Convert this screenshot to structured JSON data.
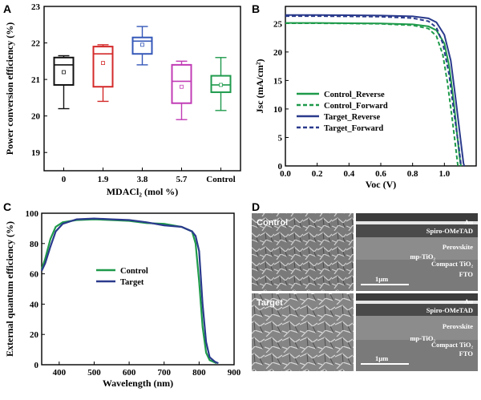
{
  "panels": {
    "a": "A",
    "b": "B",
    "c": "C",
    "d": "D"
  },
  "colors": {
    "black": "#111111",
    "red": "#d42a2a",
    "blue": "#3558b8",
    "purple": "#c13cb5",
    "green": "#1f9a4c",
    "navy": "#2a3a8c",
    "control_green": "#1e9a4a"
  },
  "chart_data": [
    {
      "type": "box",
      "ylabel": "Power conversion efficiency (%)",
      "xlabel": "MDACl₂ (mol %)",
      "ylim": [
        18.5,
        23
      ],
      "yticks": [
        "19",
        "20",
        "21",
        "22",
        "23"
      ],
      "categories": [
        "0",
        "1.9",
        "3.8",
        "5.7",
        "Control"
      ],
      "boxes": [
        {
          "cat": "0",
          "color": "black",
          "min": 20.2,
          "q1": 20.85,
          "median": 21.4,
          "q3": 21.6,
          "max": 21.65,
          "mean": 21.2
        },
        {
          "cat": "1.9",
          "color": "red",
          "min": 20.4,
          "q1": 20.8,
          "median": 21.7,
          "q3": 21.9,
          "max": 21.95,
          "mean": 21.45
        },
        {
          "cat": "3.8",
          "color": "blue",
          "min": 21.4,
          "q1": 21.7,
          "median": 22.05,
          "q3": 22.15,
          "max": 22.45,
          "mean": 21.95
        },
        {
          "cat": "5.7",
          "color": "purple",
          "min": 19.9,
          "q1": 20.35,
          "median": 20.95,
          "q3": 21.4,
          "max": 21.5,
          "mean": 20.8
        },
        {
          "cat": "Control",
          "color": "green",
          "min": 20.15,
          "q1": 20.65,
          "median": 20.85,
          "q3": 21.1,
          "max": 21.6,
          "mean": 20.85
        }
      ]
    },
    {
      "type": "line",
      "xlabel": "Voc (V)",
      "ylabel": "Jsc (mA/cm²)",
      "xlim": [
        0,
        1.2
      ],
      "ylim": [
        0,
        28
      ],
      "xticks": [
        "0.0",
        "0.2",
        "0.4",
        "0.6",
        "0.8",
        "1.0"
      ],
      "yticks": [
        "0",
        "5",
        "10",
        "15",
        "20",
        "25"
      ],
      "series": [
        {
          "name": "Control_Reverse",
          "color": "control_green",
          "dash": false,
          "points": [
            [
              0,
              25.1
            ],
            [
              0.2,
              25.1
            ],
            [
              0.4,
              25.05
            ],
            [
              0.6,
              25.0
            ],
            [
              0.8,
              24.85
            ],
            [
              0.9,
              24.5
            ],
            [
              0.95,
              23.8
            ],
            [
              1.0,
              21.5
            ],
            [
              1.03,
              17.5
            ],
            [
              1.06,
              11.0
            ],
            [
              1.08,
              5.5
            ],
            [
              1.1,
              0.5
            ],
            [
              1.105,
              0
            ]
          ]
        },
        {
          "name": "Control_Forward",
          "color": "control_green",
          "dash": true,
          "points": [
            [
              0,
              25.05
            ],
            [
              0.2,
              25.05
            ],
            [
              0.4,
              25.0
            ],
            [
              0.6,
              24.95
            ],
            [
              0.8,
              24.7
            ],
            [
              0.9,
              24.1
            ],
            [
              0.95,
              22.8
            ],
            [
              0.99,
              19.5
            ],
            [
              1.02,
              14.5
            ],
            [
              1.05,
              8.0
            ],
            [
              1.07,
              3.5
            ],
            [
              1.085,
              0
            ]
          ]
        },
        {
          "name": "Target_Reverse",
          "color": "navy",
          "dash": false,
          "points": [
            [
              0,
              26.5
            ],
            [
              0.2,
              26.5
            ],
            [
              0.4,
              26.45
            ],
            [
              0.6,
              26.4
            ],
            [
              0.8,
              26.25
            ],
            [
              0.9,
              25.9
            ],
            [
              0.95,
              25.2
            ],
            [
              1.0,
              23.0
            ],
            [
              1.04,
              18.5
            ],
            [
              1.07,
              12.0
            ],
            [
              1.1,
              5.0
            ],
            [
              1.12,
              0.5
            ],
            [
              1.125,
              0
            ]
          ]
        },
        {
          "name": "Target_Forward",
          "color": "navy",
          "dash": true,
          "points": [
            [
              0,
              26.3
            ],
            [
              0.2,
              26.3
            ],
            [
              0.4,
              26.25
            ],
            [
              0.6,
              26.2
            ],
            [
              0.8,
              25.95
            ],
            [
              0.9,
              25.4
            ],
            [
              0.95,
              24.3
            ],
            [
              0.99,
              21.5
            ],
            [
              1.03,
              16.0
            ],
            [
              1.06,
              9.5
            ],
            [
              1.09,
              3.5
            ],
            [
              1.105,
              0
            ]
          ]
        }
      ]
    },
    {
      "type": "line",
      "xlabel": "Wavelength (nm)",
      "ylabel": "External quantum efficiency (%)",
      "xlim": [
        350,
        900
      ],
      "ylim": [
        0,
        100
      ],
      "xticks": [
        "400",
        "500",
        "600",
        "700",
        "800",
        "900"
      ],
      "yticks": [
        "0",
        "20",
        "40",
        "60",
        "80",
        "100"
      ],
      "series": [
        {
          "name": "Control",
          "color": "control_green",
          "points": [
            [
              350,
              63
            ],
            [
              360,
              70
            ],
            [
              375,
              83
            ],
            [
              390,
              91
            ],
            [
              410,
              94
            ],
            [
              450,
              95.5
            ],
            [
              500,
              96
            ],
            [
              550,
              95.5
            ],
            [
              600,
              95
            ],
            [
              650,
              93.5
            ],
            [
              700,
              93
            ],
            [
              750,
              91
            ],
            [
              780,
              88
            ],
            [
              790,
              80
            ],
            [
              800,
              55
            ],
            [
              810,
              25
            ],
            [
              820,
              8
            ],
            [
              830,
              3
            ],
            [
              850,
              1
            ]
          ]
        },
        {
          "name": "Target",
          "color": "navy",
          "points": [
            [
              350,
              62
            ],
            [
              360,
              67
            ],
            [
              375,
              78
            ],
            [
              390,
              88
            ],
            [
              410,
              93
            ],
            [
              450,
              96
            ],
            [
              500,
              96.5
            ],
            [
              550,
              96
            ],
            [
              600,
              95.5
            ],
            [
              650,
              94
            ],
            [
              700,
              92
            ],
            [
              750,
              91
            ],
            [
              780,
              88
            ],
            [
              790,
              85
            ],
            [
              800,
              75
            ],
            [
              810,
              40
            ],
            [
              820,
              15
            ],
            [
              830,
              5
            ],
            [
              845,
              2
            ],
            [
              855,
              1
            ]
          ]
        }
      ]
    }
  ],
  "sem": {
    "control_label": "Control",
    "target_label": "Target",
    "layers": [
      "Au",
      "Spiro-OMeTAD",
      "Perovskite",
      "mp-TiO₂",
      "Compact TiO₂",
      "FTO"
    ],
    "scale": "1µm"
  }
}
